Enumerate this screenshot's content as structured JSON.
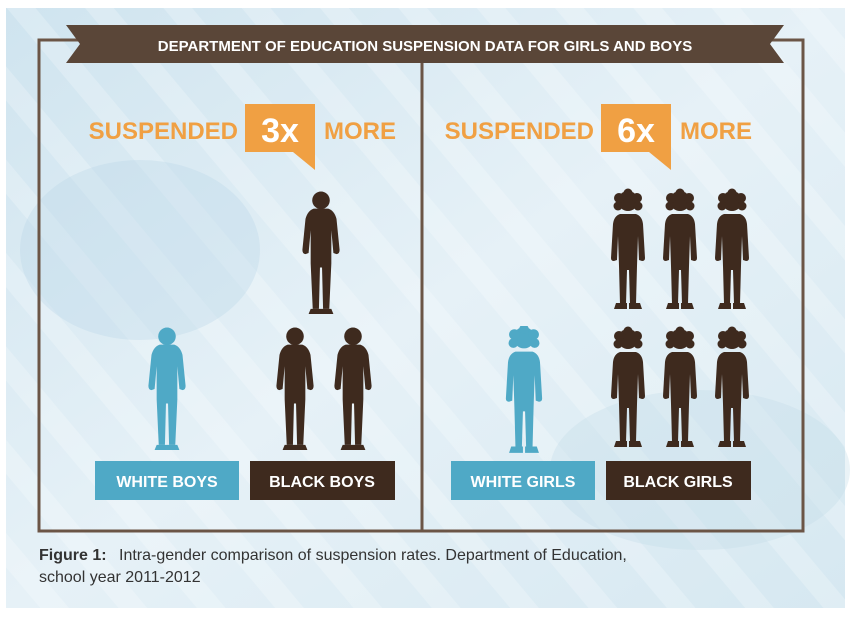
{
  "header": {
    "title": "DEPARTMENT OF EDUCATION SUSPENSION DATA FOR GIRLS AND BOYS"
  },
  "caption": {
    "label": "Figure 1:",
    "line1": "Intra-gender comparison of suspension rates. Department of Education,",
    "line2": "school year 2011-2012"
  },
  "colors": {
    "brown": "#3e2a1e",
    "frame": "#6b5546",
    "blue": "#4fa9c6",
    "orange": "#f0a043",
    "background": "#dcecf4"
  },
  "chart_data": [
    {
      "type": "pictogram",
      "group": "boys",
      "callout": {
        "prefix": "SUSPENDED",
        "multiplier": "3x",
        "suffix": "MORE"
      },
      "categories": [
        "WHITE BOYS",
        "BLACK BOYS"
      ],
      "values": [
        1,
        3
      ],
      "icons": [
        "boy-figure-icon",
        "boy-figure-icon"
      ],
      "series_colors": [
        "#4fa9c6",
        "#3e2a1e"
      ]
    },
    {
      "type": "pictogram",
      "group": "girls",
      "callout": {
        "prefix": "SUSPENDED",
        "multiplier": "6x",
        "suffix": "MORE"
      },
      "categories": [
        "WHITE GIRLS",
        "BLACK GIRLS"
      ],
      "values": [
        1,
        6
      ],
      "icons": [
        "girl-figure-icon",
        "girl-figure-icon"
      ],
      "series_colors": [
        "#4fa9c6",
        "#3e2a1e"
      ]
    }
  ]
}
